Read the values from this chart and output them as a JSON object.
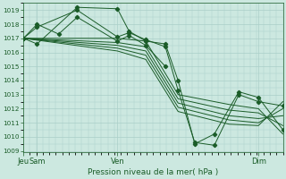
{
  "xlabel": "Pression niveau de la mer( hPa )",
  "bg_color": "#cce8e0",
  "grid_color": "#aacfc8",
  "line_color": "#1a5c28",
  "dot_color": "#1a5c28",
  "ylim": [
    1009,
    1019.5
  ],
  "yticks": [
    1009,
    1010,
    1011,
    1012,
    1013,
    1014,
    1015,
    1016,
    1017,
    1018,
    1019
  ],
  "xtick_labels": [
    "Jeu",
    "Sam",
    "Ven",
    "Dim"
  ],
  "xtick_positions": [
    0,
    14,
    96,
    240
  ],
  "xlim": [
    0,
    265
  ],
  "lines": [
    {
      "x": [
        0,
        14,
        55,
        96,
        108,
        125,
        145,
        158,
        175,
        195,
        220,
        240,
        265
      ],
      "y": [
        1017.0,
        1016.6,
        1019.2,
        1019.1,
        1017.5,
        1016.8,
        1016.6,
        1014.0,
        1009.5,
        1010.2,
        1013.2,
        1012.8,
        1010.5
      ],
      "dots": true
    },
    {
      "x": [
        0,
        96,
        125,
        158,
        210,
        240,
        265
      ],
      "y": [
        1017.0,
        1017.0,
        1016.8,
        1013.0,
        1012.3,
        1012.0,
        1010.2
      ],
      "dots": false
    },
    {
      "x": [
        0,
        96,
        125,
        158,
        210,
        240,
        265
      ],
      "y": [
        1017.0,
        1016.7,
        1016.4,
        1012.7,
        1011.9,
        1011.7,
        1010.8
      ],
      "dots": false
    },
    {
      "x": [
        0,
        96,
        125,
        158,
        210,
        240,
        265
      ],
      "y": [
        1017.0,
        1016.5,
        1016.1,
        1012.4,
        1011.5,
        1011.3,
        1011.5
      ],
      "dots": false
    },
    {
      "x": [
        0,
        96,
        125,
        158,
        210,
        240,
        265
      ],
      "y": [
        1017.0,
        1016.3,
        1015.8,
        1012.1,
        1011.2,
        1011.0,
        1012.0
      ],
      "dots": false
    },
    {
      "x": [
        0,
        96,
        125,
        158,
        210,
        240,
        265
      ],
      "y": [
        1017.0,
        1016.1,
        1015.5,
        1011.8,
        1010.9,
        1010.8,
        1012.5
      ],
      "dots": false
    },
    {
      "x": [
        0,
        14,
        55,
        96,
        108,
        125,
        145,
        158,
        175,
        195,
        220,
        240,
        265
      ],
      "y": [
        1017.0,
        1017.8,
        1019.0,
        1017.1,
        1017.4,
        1016.9,
        1016.4,
        1013.3,
        1009.6,
        1009.4,
        1013.0,
        1012.5,
        1012.2
      ],
      "dots": true
    },
    {
      "x": [
        0,
        14,
        36,
        55,
        96,
        108,
        125,
        145
      ],
      "y": [
        1017.0,
        1018.0,
        1017.3,
        1018.5,
        1016.8,
        1017.2,
        1016.5,
        1015.0
      ],
      "dots": true
    }
  ]
}
